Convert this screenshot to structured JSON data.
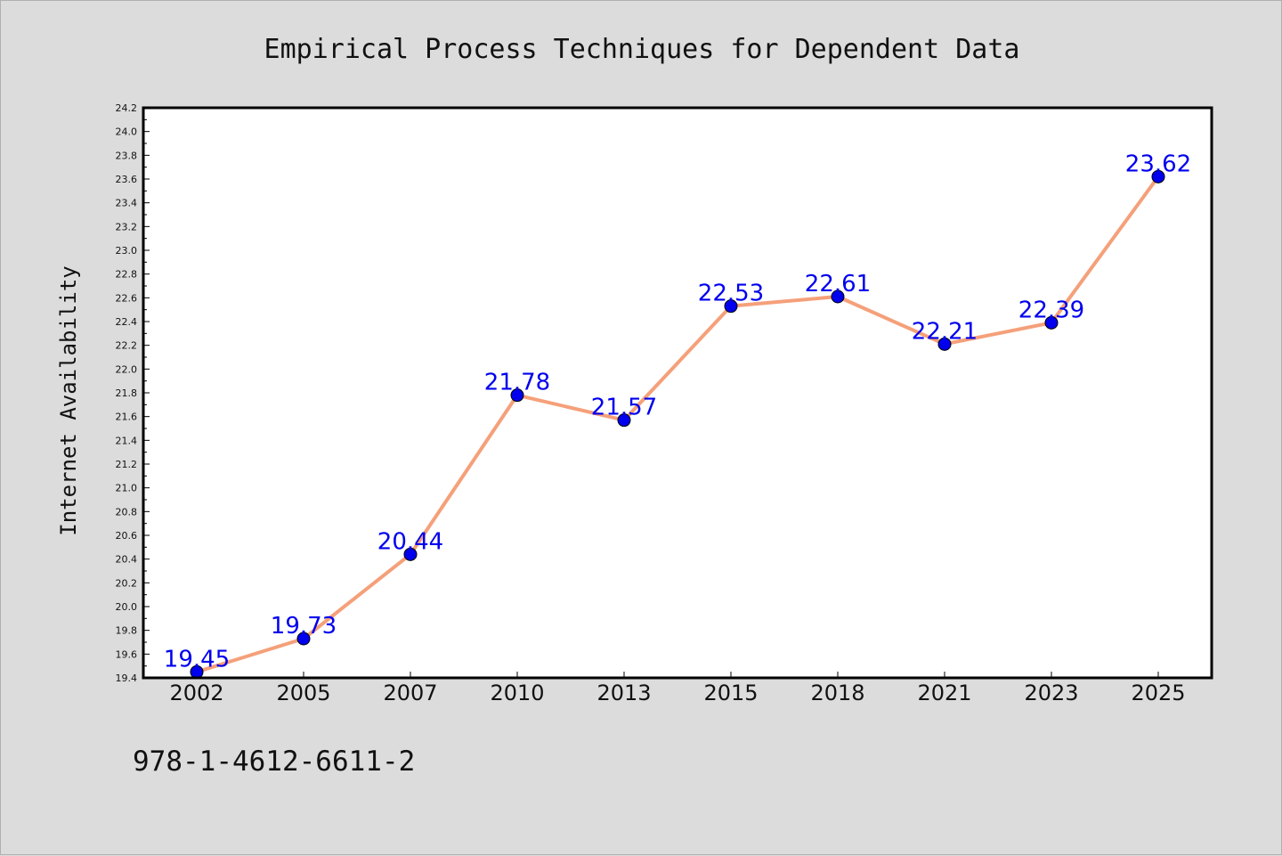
{
  "chart_data": {
    "type": "line",
    "title": "Empirical Process Techniques for Dependent Data",
    "xlabel": "",
    "ylabel": "Internet Availability",
    "categories": [
      "2002",
      "2005",
      "2007",
      "2010",
      "2013",
      "2015",
      "2018",
      "2021",
      "2023",
      "2025"
    ],
    "series": [
      {
        "values": [
          19.45,
          19.73,
          20.44,
          21.78,
          21.57,
          22.53,
          22.61,
          22.21,
          22.39,
          23.62
        ]
      }
    ],
    "data_labels": [
      "19.45",
      "19.73",
      "20.44",
      "21.78",
      "21.57",
      "22.53",
      "22.61",
      "22.21",
      "22.39",
      "23.62"
    ],
    "ylim": [
      19.4,
      24.2
    ],
    "yticks": [
      "19.4",
      "19.6",
      "19.8",
      "20.0",
      "20.2",
      "20.4",
      "20.6",
      "20.8",
      "21.0",
      "21.2",
      "21.4",
      "21.6",
      "21.8",
      "22.0",
      "22.2",
      "22.4",
      "22.6",
      "22.8",
      "23.0",
      "23.2",
      "23.4",
      "23.6",
      "23.8",
      "24.0",
      "24.2"
    ],
    "grid": false,
    "legend": "none",
    "colors": {
      "line": "#f5a07a",
      "marker": "#0000ee",
      "label": "#0000ee",
      "background": "#dcdcdc",
      "plot_background": "#ffffff"
    }
  },
  "footer": {
    "text": "978-1-4612-6611-2"
  }
}
